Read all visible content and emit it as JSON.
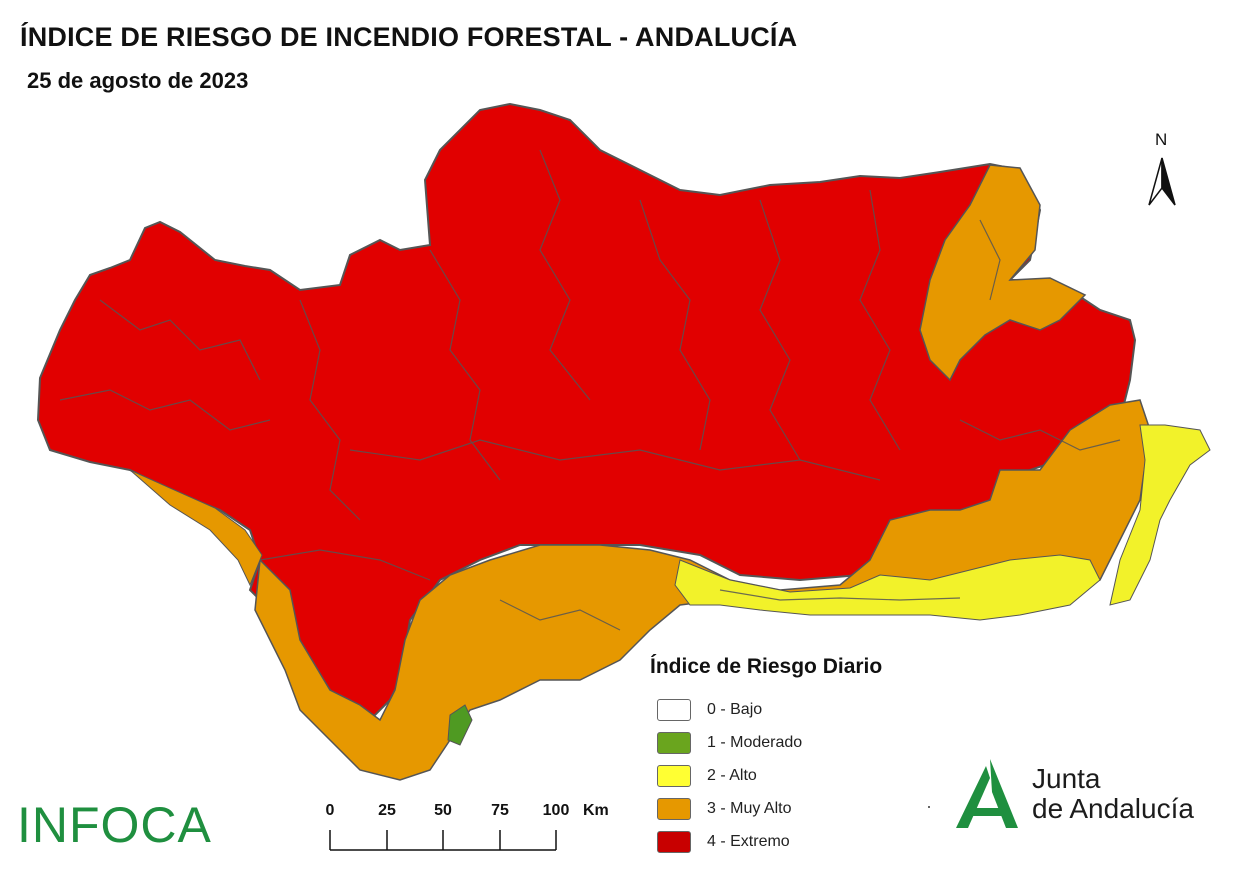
{
  "header": {
    "title": "ÍNDICE DE RIESGO DE INCENDIO FORESTAL - ANDALUCÍA",
    "date": "25 de agosto de 2023"
  },
  "north_arrow": {
    "label": "N"
  },
  "legend": {
    "title": "Índice de Riesgo Diario",
    "items": [
      {
        "label": "0 - Bajo",
        "color": "#ffffff"
      },
      {
        "label": "1 - Moderado",
        "color": "#6aa51e"
      },
      {
        "label": "2 - Alto",
        "color": "#ffff33"
      },
      {
        "label": "3 - Muy Alto",
        "color": "#e69800"
      },
      {
        "label": "4 - Extremo",
        "color": "#c80000"
      }
    ]
  },
  "map": {
    "colors": {
      "extremo": "#e10000",
      "muy_alto": "#e69800",
      "alto": "#f2f22a",
      "moderado": "#4f9a22",
      "borders": "#555555"
    }
  },
  "scale_bar": {
    "ticks": [
      "0",
      "25",
      "50",
      "75",
      "100"
    ],
    "unit": "Km"
  },
  "logos": {
    "infoca": "INFOCA",
    "junta_line1": "Junta",
    "junta_line2": "de Andalucía",
    "junta_color": "#1f8f3f"
  }
}
